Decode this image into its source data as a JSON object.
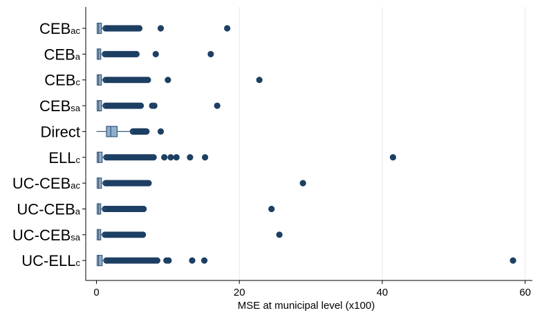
{
  "chart_data": {
    "type": "boxplot",
    "orientation": "horizontal",
    "title": "",
    "xlabel": "MSE at municipal level (x100)",
    "ylabel": "",
    "xlim": [
      -1.5,
      61
    ],
    "xticks": [
      0,
      20,
      40,
      60
    ],
    "grid": "vertical",
    "legend": "none",
    "colors": {
      "box_fill": "#8faecb",
      "box_stroke": "#3a5a7a",
      "point": "#1d3f63",
      "grid": "#e6e6e6",
      "axis": "#000000"
    },
    "categories": [
      {
        "label": "CEB",
        "sub": "ac"
      },
      {
        "label": "CEB",
        "sub": "a"
      },
      {
        "label": "CEB",
        "sub": "c"
      },
      {
        "label": "CEB",
        "sub": "sa"
      },
      {
        "label": "Direct",
        "sub": ""
      },
      {
        "label": "ELL",
        "sub": "c"
      },
      {
        "label": "UC-CEB",
        "sub": "ac"
      },
      {
        "label": "UC-CEB",
        "sub": "a"
      },
      {
        "label": "UC-CEB",
        "sub": "sa"
      },
      {
        "label": "UC-ELL",
        "sub": "c"
      }
    ],
    "series": [
      {
        "min": 0.05,
        "q1": 0.1,
        "median": 0.3,
        "q3": 0.7,
        "whisker_high": 1.3,
        "outliers_dense_range": [
          1.3,
          6.0
        ],
        "outliers": [
          9.0,
          18.3
        ]
      },
      {
        "min": 0.05,
        "q1": 0.1,
        "median": 0.3,
        "q3": 0.6,
        "whisker_high": 1.2,
        "outliers_dense_range": [
          1.2,
          5.6
        ],
        "outliers": [
          8.3,
          16.0
        ]
      },
      {
        "min": 0.05,
        "q1": 0.1,
        "median": 0.3,
        "q3": 0.7,
        "whisker_high": 1.3,
        "outliers_dense_range": [
          1.3,
          7.2
        ],
        "outliers": [
          10.0,
          22.8
        ]
      },
      {
        "min": 0.05,
        "q1": 0.1,
        "median": 0.3,
        "q3": 0.7,
        "whisker_high": 1.3,
        "outliers_dense_range": [
          1.3,
          6.2
        ],
        "outliers": [
          7.8,
          8.1,
          16.9
        ]
      },
      {
        "min": 0.0,
        "q1": 1.4,
        "median": 2.0,
        "q3": 2.9,
        "whisker_high": 5.1,
        "outliers_dense_range": [
          5.1,
          7.0
        ],
        "outliers": [
          9.0
        ]
      },
      {
        "min": 0.05,
        "q1": 0.1,
        "median": 0.3,
        "q3": 0.8,
        "whisker_high": 1.4,
        "outliers_dense_range": [
          1.4,
          8.0
        ],
        "outliers": [
          9.5,
          10.4,
          11.2,
          13.1,
          15.2,
          41.5
        ]
      },
      {
        "min": 0.05,
        "q1": 0.1,
        "median": 0.3,
        "q3": 0.7,
        "whisker_high": 1.3,
        "outliers_dense_range": [
          1.3,
          7.3
        ],
        "outliers": [
          28.9
        ]
      },
      {
        "min": 0.05,
        "q1": 0.1,
        "median": 0.3,
        "q3": 0.6,
        "whisker_high": 1.2,
        "outliers_dense_range": [
          1.2,
          6.6
        ],
        "outliers": [
          24.5
        ]
      },
      {
        "min": 0.05,
        "q1": 0.1,
        "median": 0.3,
        "q3": 0.6,
        "whisker_high": 1.2,
        "outliers_dense_range": [
          1.2,
          6.5
        ],
        "outliers": [
          25.6
        ]
      },
      {
        "min": 0.05,
        "q1": 0.1,
        "median": 0.3,
        "q3": 0.8,
        "whisker_high": 1.4,
        "outliers_dense_range": [
          1.4,
          8.5
        ],
        "outliers": [
          9.8,
          10.1,
          13.4,
          15.1,
          58.3
        ]
      }
    ]
  }
}
